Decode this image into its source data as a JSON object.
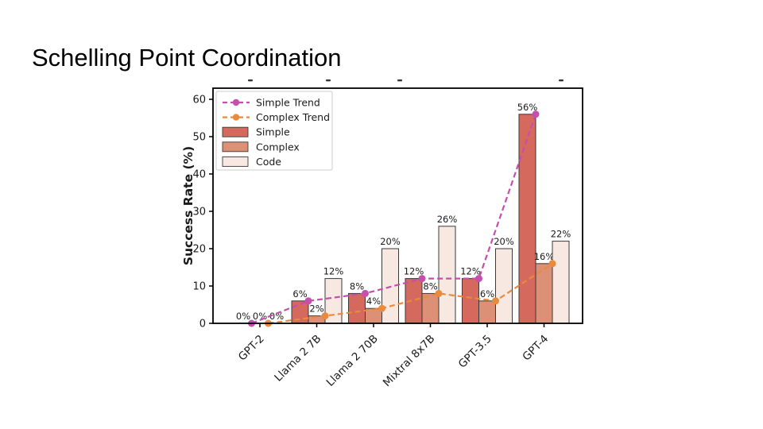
{
  "slide": {
    "title": "Schelling Point Coordination",
    "background_color": "#ffffff"
  },
  "chart_data": {
    "type": "bar",
    "title": "",
    "xlabel": "",
    "ylabel": "Success Rate (%)",
    "ylim": [
      0,
      63
    ],
    "yticks": [
      0,
      10,
      20,
      30,
      40,
      50,
      60
    ],
    "grid": false,
    "categories": [
      "GPT-2",
      "Llama 2 7B",
      "Llama 2 70B",
      "Mixtral 8x7B",
      "GPT-3.5",
      "GPT-4"
    ],
    "series": [
      {
        "name": "Simple",
        "type": "bar",
        "color": "#d5695d",
        "values": [
          0,
          6,
          8,
          12,
          12,
          56
        ]
      },
      {
        "name": "Complex",
        "type": "bar",
        "color": "#dc9075",
        "values": [
          0,
          2,
          4,
          8,
          6,
          16
        ]
      },
      {
        "name": "Code",
        "type": "bar",
        "color": "#f8e8e2",
        "values": [
          0,
          12,
          20,
          26,
          20,
          22
        ]
      }
    ],
    "trend_series": [
      {
        "name": "Simple Trend",
        "color": "#c44fad",
        "style": "dashed",
        "marker": "circle",
        "values": [
          0,
          6,
          8,
          12,
          12,
          56
        ]
      },
      {
        "name": "Complex Trend",
        "color": "#ea8a3c",
        "style": "dashed",
        "marker": "circle",
        "values": [
          0,
          2,
          4,
          8,
          6,
          16
        ]
      }
    ],
    "value_label_format": "{v}%",
    "bar_edge_color": "#3a3a3a",
    "axis_color": "#000000",
    "legend": {
      "position": "upper-left",
      "entries": [
        "Simple Trend",
        "Complex Trend",
        "Simple",
        "Complex",
        "Code"
      ]
    },
    "x_tick_rotation_deg": 45,
    "clipped_title_fragment_x": [
      82,
      180,
      270,
      473
    ]
  }
}
